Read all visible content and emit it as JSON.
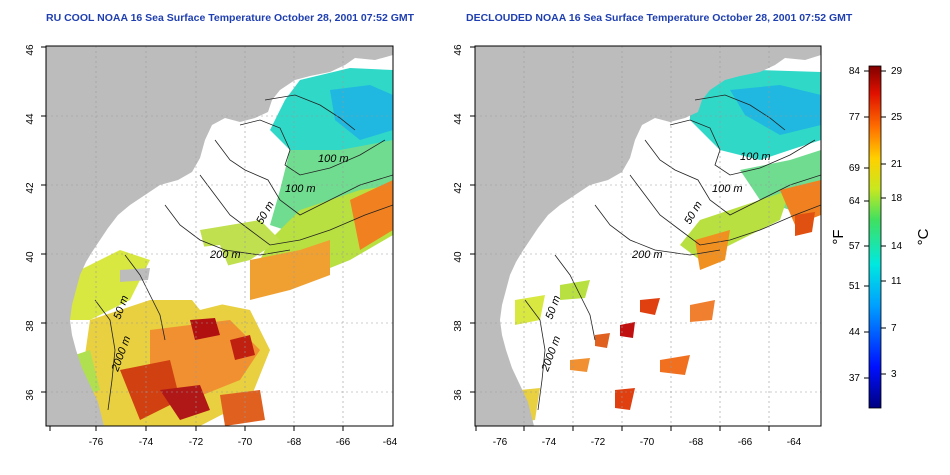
{
  "titles": {
    "left": "RU COOL NOAA 16 Sea Surface Temperature October 28, 2001 07:52 GMT",
    "right": "DECLOUDED NOAA 16 Sea Surface Temperature October 28, 2001 07:52 GMT"
  },
  "map_axes": {
    "lon_ticks": [
      "-76",
      "-74",
      "-72",
      "-70",
      "-68",
      "-66",
      "-64"
    ],
    "lat_ticks": [
      "46",
      "44",
      "42",
      "40",
      "38",
      "36"
    ],
    "lon_range": [
      -77,
      -63
    ],
    "lat_range": [
      35,
      46
    ]
  },
  "contour_labels": {
    "left": [
      "100 m",
      "100 m",
      "50 m",
      "200 m",
      "50 m",
      "2000 m"
    ],
    "right": [
      "100 m",
      "100 m",
      "50 m",
      "200 m",
      "50 m",
      "2000 m"
    ]
  },
  "colorbar": {
    "fahrenheit_label": "°F",
    "celsius_label": "°C",
    "fahrenheit_ticks": [
      "84",
      "77",
      "69",
      "64",
      "57",
      "51",
      "44",
      "37"
    ],
    "celsius_ticks": [
      "29",
      "25",
      "21",
      "18",
      "14",
      "11",
      "7",
      "3"
    ]
  },
  "colors": {
    "land": "#bcbcbc",
    "cloud": "#ffffff",
    "cold": "#1030c0",
    "cool": "#30d8c0",
    "mild": "#b8e040",
    "warm": "#f08020",
    "hot": "#c01010",
    "title": "#1f3fb0"
  }
}
